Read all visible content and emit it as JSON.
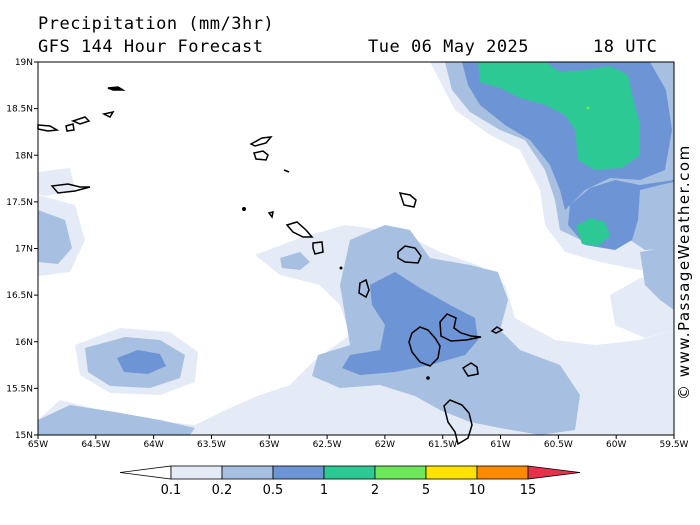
{
  "header": {
    "title_line1": "Precipitation (mm/3hr)",
    "title_line2": "GFS 144 Hour Forecast",
    "date": "Tue 06 May 2025",
    "time": "18 UTC"
  },
  "credit": "© www.PassageWeather.com",
  "axes": {
    "lat_labels": [
      "19N",
      "18.5N",
      "18N",
      "17.5N",
      "17N",
      "16.5N",
      "16N",
      "15.5N",
      "15N"
    ],
    "lon_labels": [
      "65W",
      "64.5W",
      "64W",
      "63.5W",
      "63W",
      "62.5W",
      "62W",
      "61.5W",
      "61W",
      "60.5W",
      "60W",
      "59.5W"
    ]
  },
  "legend": {
    "labels": [
      "0.1",
      "0.2",
      "0.5",
      "1",
      "2",
      "5",
      "10",
      "15"
    ],
    "colors": [
      "#ffffff",
      "#e4ebf7",
      "#a7bfe0",
      "#6d95d5",
      "#2dc995",
      "#6ee85a",
      "#ffe200",
      "#ff8a00",
      "#e8304a"
    ]
  }
}
